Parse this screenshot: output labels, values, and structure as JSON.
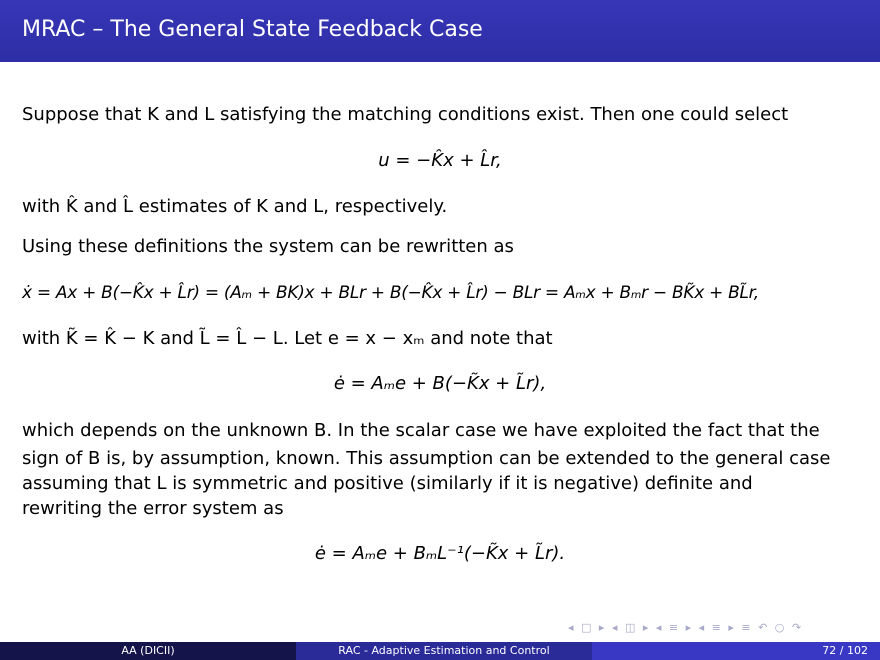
{
  "slide": {
    "title": "MRAC – The General State Feedback Case",
    "lines": [
      "Suppose that K and L satisfying the matching conditions exist. Then one could select",
      "u = −K̂x + L̂r,",
      "with K̂ and L̂ estimates of K and L, respectively.",
      "Using these definitions the system can be rewritten as",
      "ẋ = Ax + B(−K̂x + L̂r) = (Aₘ + BK)x + BLr + B(−K̂x + L̂r) − BLr = Aₘx + Bₘr − BK̃x + BL̃r,",
      "with K̃ = K̂ − K and L̃ = L̂ − L. Let e = x − xₘ and note that",
      "ė = Aₘe + B(−K̃x + L̃r),",
      "which depends on the unknown B. In the scalar case we have exploited the fact that the",
      "sign of B is, by assumption, known. This assumption can be extended to the general case",
      "assuming that L is symmetric and positive (similarly if it is negative) definite and",
      "rewriting the error system as",
      "ė = Aₘe + BₘL⁻¹(−K̃x + L̃r)."
    ]
  },
  "nav_symbols": "◂ □ ▸ ◂ ◫ ▸ ◂ ≡ ▸ ◂ ≡ ▸   ≡   ↶ ○ ↷",
  "footer": {
    "author": "AA  (DICII)",
    "short_title": "RAC - Adaptive Estimation and Control",
    "page": "72 / 102"
  },
  "colors": {
    "title_bar": "#3333b3",
    "footer_dark": "#14144a",
    "footer_mid": "#2a2a98",
    "footer_light": "#3838c4"
  }
}
